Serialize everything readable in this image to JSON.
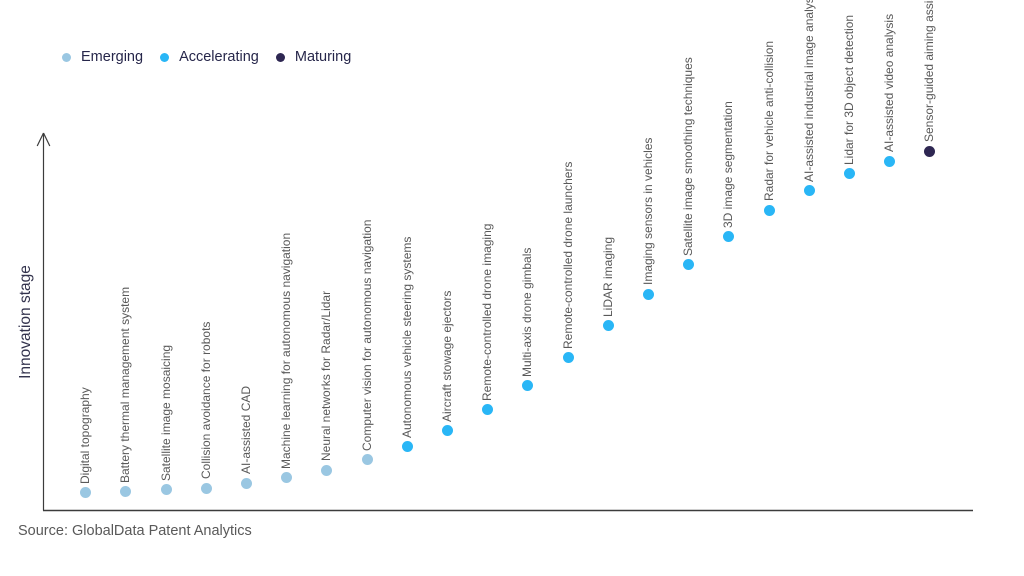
{
  "legend": {
    "items": [
      {
        "label": "Emerging",
        "color": "#9ac7e2"
      },
      {
        "label": "Accelerating",
        "color": "#29b6f6"
      },
      {
        "label": "Maturing",
        "color": "#2e2752"
      }
    ]
  },
  "axis": {
    "y_label": "Innovation stage"
  },
  "source": "Source: GlobalData Patent Analytics",
  "chart_data": {
    "type": "scatter",
    "title": "",
    "xlabel": "",
    "ylabel": "Innovation stage",
    "ylim": [
      0,
      100
    ],
    "grid": false,
    "legend_position": "top-left",
    "stages": [
      "Emerging",
      "Accelerating",
      "Maturing"
    ],
    "points": [
      {
        "label": "Digital topography",
        "stage": "Emerging",
        "level": 4.8
      },
      {
        "label": "Battery thermal management system",
        "stage": "Emerging",
        "level": 5.1
      },
      {
        "label": "Satellite image mosaicing",
        "stage": "Emerging",
        "level": 5.6
      },
      {
        "label": "Collision avoidance for robots",
        "stage": "Emerging",
        "level": 6.1
      },
      {
        "label": "AI-assisted CAD",
        "stage": "Emerging",
        "level": 7.5
      },
      {
        "label": "Machine learning for autonomous navigation",
        "stage": "Emerging",
        "level": 8.9
      },
      {
        "label": "Neural networks for Radar/Lidar",
        "stage": "Emerging",
        "level": 11.0
      },
      {
        "label": "Computer vision for autonomous navigation",
        "stage": "Emerging",
        "level": 13.9
      },
      {
        "label": "Autonomous vehicle steering systems",
        "stage": "Accelerating",
        "level": 17.6
      },
      {
        "label": "Aircraft stowage ejectors",
        "stage": "Accelerating",
        "level": 22.0
      },
      {
        "label": "Remote-controlled drone imaging",
        "stage": "Accelerating",
        "level": 27.8
      },
      {
        "label": "Multi-axis drone gimbals",
        "stage": "Accelerating",
        "level": 34.5
      },
      {
        "label": "Remote-controlled drone launchers",
        "stage": "Accelerating",
        "level": 42.3
      },
      {
        "label": "LiDAR imaging",
        "stage": "Accelerating",
        "level": 51.2
      },
      {
        "label": "Imaging sensors in vehicles",
        "stage": "Accelerating",
        "level": 59.9
      },
      {
        "label": "Satellite image smoothing techniques",
        "stage": "Accelerating",
        "level": 68.1
      },
      {
        "label": "3D image segmentation",
        "stage": "Accelerating",
        "level": 75.9
      },
      {
        "label": "Radar for vehicle anti-collision",
        "stage": "Accelerating",
        "level": 83.2
      },
      {
        "label": "AI-assisted industrial image analysis",
        "stage": "Accelerating",
        "level": 88.7
      },
      {
        "label": "Lidar for 3D object detection",
        "stage": "Accelerating",
        "level": 93.4
      },
      {
        "label": "AI-assisted video analysis",
        "stage": "Accelerating",
        "level": 96.9
      },
      {
        "label": "Sensor-guided aiming assists",
        "stage": "Maturing",
        "level": 99.6
      }
    ]
  }
}
